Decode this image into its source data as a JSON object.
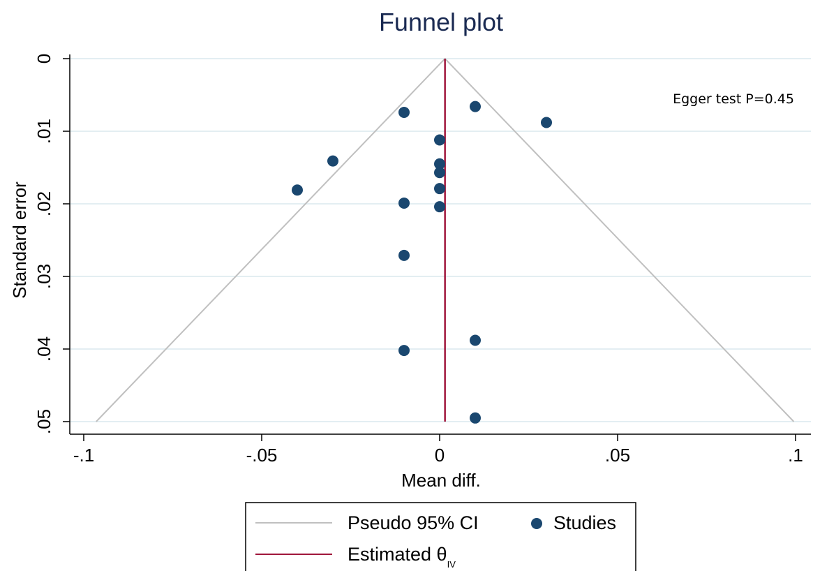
{
  "chart_data": {
    "type": "scatter",
    "title": "Funnel plot",
    "xlabel": "Mean diff.",
    "ylabel": "Standard error",
    "xlim": [
      -0.1,
      0.1
    ],
    "ylim": [
      0,
      0.05
    ],
    "y_reversed": true,
    "x_ticks": [
      -0.1,
      -0.05,
      0,
      0.05,
      0.1
    ],
    "x_tick_labels": [
      "-.1",
      "-.05",
      "0",
      ".05",
      ".1"
    ],
    "y_ticks": [
      0,
      0.01,
      0.02,
      0.03,
      0.04,
      0.05
    ],
    "y_tick_labels": [
      "0",
      ".01",
      ".02",
      ".03",
      ".04",
      ".05"
    ],
    "grid": "horizontal",
    "estimate": 0.0015,
    "funnel": {
      "apex": [
        0.0015,
        0
      ],
      "base_left": [
        -0.0965,
        0.05
      ],
      "base_right": [
        0.0995,
        0.05
      ]
    },
    "series": [
      {
        "name": "Studies",
        "points": [
          {
            "x": 0.01,
            "y": 0.0066
          },
          {
            "x": -0.01,
            "y": 0.0074
          },
          {
            "x": 0.03,
            "y": 0.0088
          },
          {
            "x": 0.0,
            "y": 0.0112
          },
          {
            "x": -0.03,
            "y": 0.0141
          },
          {
            "x": 0.0,
            "y": 0.0145
          },
          {
            "x": 0.0,
            "y": 0.0157
          },
          {
            "x": -0.04,
            "y": 0.0181
          },
          {
            "x": 0.0,
            "y": 0.0179
          },
          {
            "x": -0.01,
            "y": 0.0199
          },
          {
            "x": 0.0,
            "y": 0.0204
          },
          {
            "x": -0.01,
            "y": 0.0271
          },
          {
            "x": 0.01,
            "y": 0.0388
          },
          {
            "x": -0.01,
            "y": 0.0402
          },
          {
            "x": 0.01,
            "y": 0.0495
          }
        ]
      }
    ],
    "annotation": "Egger test P=0.45",
    "legend": {
      "placement": "bottom",
      "items": [
        {
          "label": "Pseudo 95% CI",
          "kind": "line",
          "color": "#c0c0c0"
        },
        {
          "label": "Studies",
          "kind": "marker",
          "color": "#1a476f"
        },
        {
          "label": "Estimated θ",
          "subscript": "IV",
          "kind": "line",
          "color": "#a0173c"
        }
      ]
    },
    "colors": {
      "title": "#1a2a52",
      "marker": "#1a476f",
      "estimate_line": "#a0173c",
      "funnel_line": "#c0c0c0",
      "gridline": "#e3eef2"
    }
  }
}
